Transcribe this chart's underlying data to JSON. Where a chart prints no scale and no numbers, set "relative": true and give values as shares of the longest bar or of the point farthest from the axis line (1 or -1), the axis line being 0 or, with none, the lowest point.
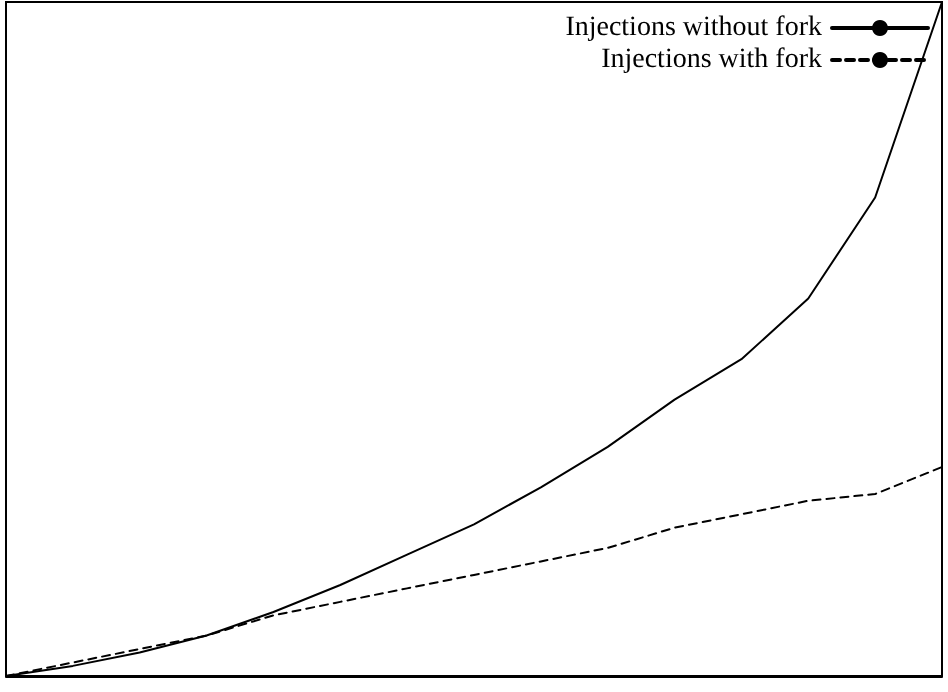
{
  "chart_data": {
    "type": "line",
    "relative": true,
    "legend": "top right",
    "grid": false,
    "marker": "none",
    "categories": [
      null,
      null,
      null,
      null,
      null,
      null,
      null,
      null,
      null,
      null,
      null,
      null,
      null,
      null,
      null
    ],
    "series": [
      {
        "name": "Injections without fork",
        "color": "#000000",
        "line_style": "solid",
        "values": [
          0,
          0.015,
          0.035,
          0.06,
          0.095,
          0.135,
          0.18,
          0.225,
          0.28,
          0.34,
          0.41,
          0.47,
          0.56,
          0.71,
          1
        ]
      },
      {
        "name": "Injections with fork",
        "color": "#000000",
        "line_style": "dashed",
        "values": [
          0,
          0.02,
          0.04,
          0.06,
          0.09,
          0.11,
          0.13,
          0.15,
          0.17,
          0.19,
          0.22,
          0.24,
          0.26,
          0.27,
          0.31
        ]
      }
    ]
  }
}
